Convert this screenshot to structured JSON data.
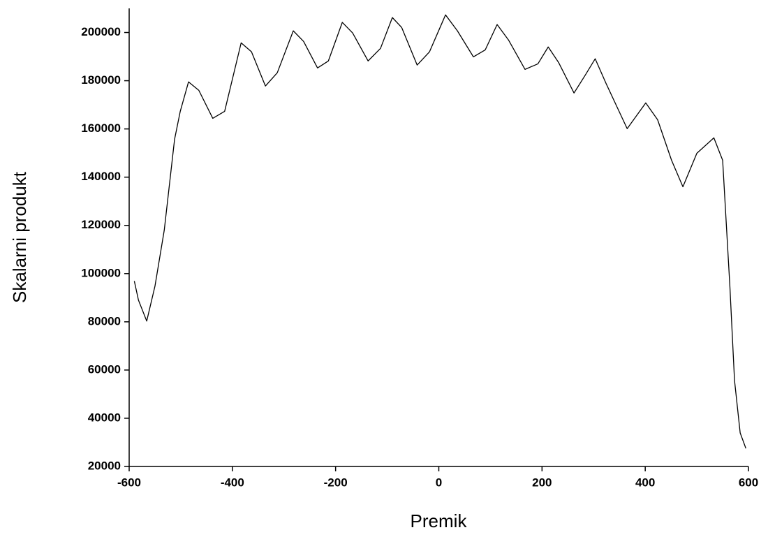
{
  "chart_data": {
    "type": "line",
    "x_label": "Premik",
    "y_label": "Skalarni produkt",
    "x": [
      -590,
      -582,
      -566,
      -550,
      -532,
      -512,
      -501,
      -485,
      -465,
      -438,
      -415,
      -383,
      -363,
      -336,
      -313,
      -282,
      -262,
      -235,
      -214,
      -187,
      -167,
      -137,
      -113,
      -90,
      -72,
      -42,
      -18,
      13,
      36,
      67,
      90,
      113,
      135,
      167,
      192,
      212,
      232,
      262,
      284,
      303,
      324,
      365,
      401,
      424,
      451,
      473,
      500,
      533,
      550,
      564,
      573,
      584,
      595
    ],
    "series": [
      {
        "name": "Skalarni produkt",
        "color": "#000000",
        "values": [
          96900,
          89000,
          80300,
          94800,
          118000,
          155700,
          167300,
          179500,
          176000,
          164400,
          167300,
          195700,
          192000,
          177800,
          183300,
          200700,
          196300,
          185300,
          188200,
          204200,
          199800,
          188200,
          193400,
          206200,
          202100,
          186500,
          192000,
          207300,
          200700,
          189900,
          192800,
          203300,
          196900,
          184700,
          187000,
          194000,
          187600,
          174900,
          182400,
          189100,
          178900,
          160100,
          170800,
          163800,
          147000,
          136000,
          149900,
          156300,
          147000,
          94800,
          55700,
          33900,
          27500
        ]
      }
    ],
    "xlim": [
      -600,
      600
    ],
    "xticks": [
      -600,
      -400,
      -200,
      0,
      200,
      400,
      600
    ],
    "ylim": [
      20000,
      210000
    ],
    "yticks": [
      20000,
      40000,
      60000,
      80000,
      100000,
      120000,
      140000,
      160000,
      180000,
      200000
    ],
    "grid": false
  }
}
